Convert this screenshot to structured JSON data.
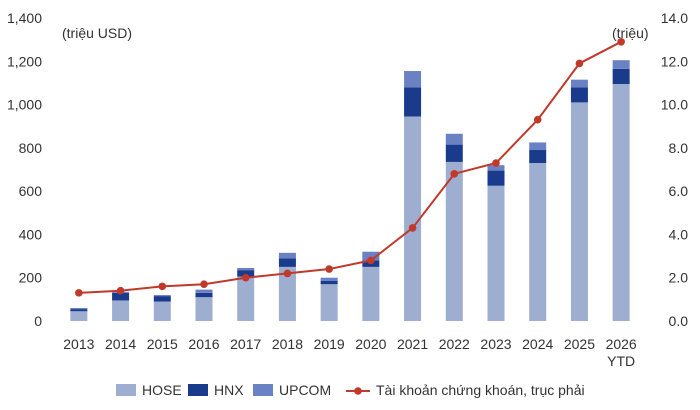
{
  "chart_data": {
    "type": "bar",
    "stacked": true,
    "categories": [
      "2013",
      "2014",
      "2015",
      "2016",
      "2017",
      "2018",
      "2019",
      "2020",
      "2021",
      "2022",
      "2023",
      "2024",
      "2025",
      "2026\nYTD"
    ],
    "series": [
      {
        "name": "HOSE",
        "type": "bar",
        "axis": "left",
        "color": "#9daed0",
        "values": [
          45,
          95,
          90,
          110,
          205,
          250,
          170,
          250,
          945,
          735,
          625,
          730,
          1010,
          1095
        ]
      },
      {
        "name": "HNX",
        "type": "bar",
        "axis": "left",
        "color": "#1a3a8c",
        "values": [
          10,
          35,
          25,
          20,
          30,
          40,
          15,
          30,
          135,
          80,
          70,
          60,
          70,
          70
        ]
      },
      {
        "name": "UPCOM",
        "type": "bar",
        "axis": "left",
        "color": "#6a82c4",
        "values": [
          5,
          5,
          5,
          15,
          10,
          25,
          15,
          40,
          75,
          50,
          25,
          35,
          35,
          40
        ]
      },
      {
        "name": "Tài khoản chứng khoán, trục phải",
        "type": "line",
        "axis": "right",
        "color": "#c0392b",
        "values": [
          1.3,
          1.4,
          1.6,
          1.7,
          2.0,
          2.2,
          2.4,
          2.8,
          4.3,
          6.8,
          7.3,
          9.3,
          11.9,
          12.9
        ]
      }
    ],
    "y_left": {
      "label": "(triệu USD)",
      "range": [
        0,
        1400
      ],
      "ticks": [
        "0",
        "200",
        "400",
        "600",
        "800",
        "1,000",
        "1,200",
        "1,400"
      ]
    },
    "y_right": {
      "label": "(triệu)",
      "range": [
        0,
        14
      ],
      "ticks": [
        "0.0",
        "2.0",
        "4.0",
        "6.0",
        "8.0",
        "10.0",
        "12.0",
        "14.0"
      ]
    },
    "grid": false,
    "legend": "bottom"
  }
}
